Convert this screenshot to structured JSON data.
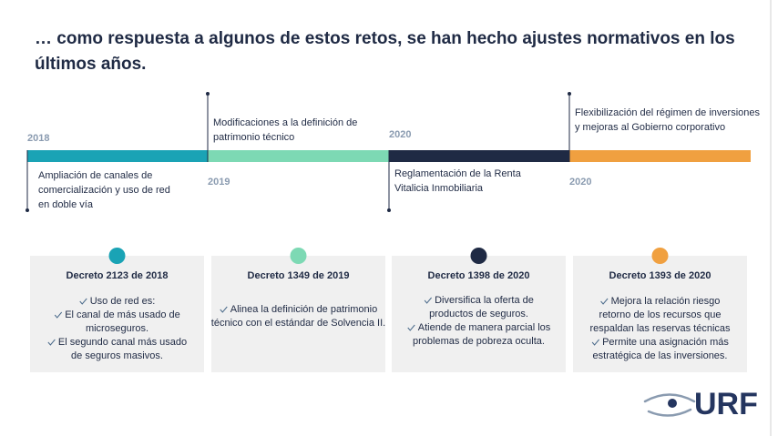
{
  "title": [
    "… como respuesta a algunos de estos retos, se han hecho ajustes normativos en los",
    "últimos años."
  ],
  "timeline": [
    {
      "year": "2018",
      "text": [
        "Ampliación de canales de",
        "comercialización y uso de red",
        "en doble vía"
      ]
    },
    {
      "year": "2019",
      "text": [
        "Modificaciones a la definición de",
        "patrimonio técnico"
      ]
    },
    {
      "year": "2020",
      "text": [
        "Reglamentación de la Renta",
        "Vitalicia Inmobiliaria"
      ]
    },
    {
      "year": "2020",
      "text": [
        "Flexibilización del régimen de inversiones",
        "y mejoras al Gobierno corporativo"
      ]
    }
  ],
  "cards": [
    {
      "title": "Decreto 2123 de 2018",
      "bullets": [
        [
          "Uso de red es:"
        ],
        [
          "El canal de más usado de",
          "microseguros."
        ],
        [
          "El segundo canal más usado",
          "de seguros masivos."
        ]
      ]
    },
    {
      "title": "Decreto 1349 de 2019",
      "bullets": [
        [
          "Alinea la definición de patrimonio",
          "técnico con el estándar de Solvencia II."
        ]
      ]
    },
    {
      "title": "Decreto 1398 de 2020",
      "bullets": [
        [
          "Diversifica la oferta de",
          "productos de seguros."
        ],
        [
          "Atiende de manera parcial los",
          "problemas de pobreza oculta."
        ]
      ]
    },
    {
      "title": "Decreto 1393 de 2020",
      "bullets": [
        [
          "Mejora la relación riesgo",
          "retorno de los recursos que",
          "respaldan las reservas técnicas"
        ],
        [
          "Permite una asignación más",
          "estratégica de las inversiones."
        ]
      ]
    }
  ],
  "logo": "URF"
}
